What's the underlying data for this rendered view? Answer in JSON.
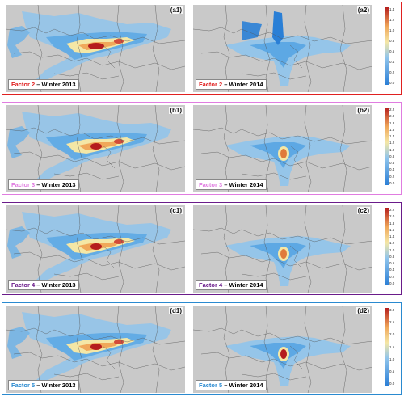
{
  "colors": {
    "land": "#c9c9c9",
    "low": "#2a7fd6",
    "mid": "#f4e7a6",
    "high": "#b51d1d"
  },
  "rows": [
    {
      "border_color": "#e02020",
      "factor_color": "#e02020",
      "left_tag": "(a1)",
      "right_tag": "(a2)",
      "factor_label": "Factor 2",
      "left_period": " – Winter 2013",
      "right_period": " – Winter 2014",
      "ticks": [
        "1.4",
        "1.2",
        "1.0",
        "0.8",
        "0.6",
        "0.4",
        "0.2",
        "0.0"
      ]
    },
    {
      "border_color": "#e07ce0",
      "factor_color": "#e07ce0",
      "left_tag": "(b1)",
      "right_tag": "(b2)",
      "factor_label": "Factor 3",
      "left_period": " – Winter 2013",
      "right_period": " – Winter 2014",
      "ticks": [
        "2.2",
        "2.0",
        "1.8",
        "1.6",
        "1.4",
        "1.2",
        "1.0",
        "0.8",
        "0.6",
        "0.4",
        "0.2",
        "0.0"
      ]
    },
    {
      "border_color": "#6a1b8a",
      "factor_color": "#6a1b8a",
      "left_tag": "(c1)",
      "right_tag": "(c2)",
      "factor_label": "Factor 4",
      "left_period": " – Winter 2013",
      "right_period": " – Winter 2014",
      "ticks": [
        "2.2",
        "2.0",
        "1.8",
        "1.6",
        "1.4",
        "1.2",
        "1.0",
        "0.8",
        "0.6",
        "0.4",
        "0.2",
        "0.0"
      ]
    },
    {
      "border_color": "#2a8ad0",
      "factor_color": "#2a8ad0",
      "left_tag": "(d1)",
      "right_tag": "(d2)",
      "factor_label": "Factor 5",
      "left_period": " – Winter 2013",
      "right_period": " – Winter 2014",
      "ticks": [
        "3.0",
        "2.5",
        "2.0",
        "1.5",
        "1.0",
        "0.5",
        "0.0"
      ]
    }
  ]
}
